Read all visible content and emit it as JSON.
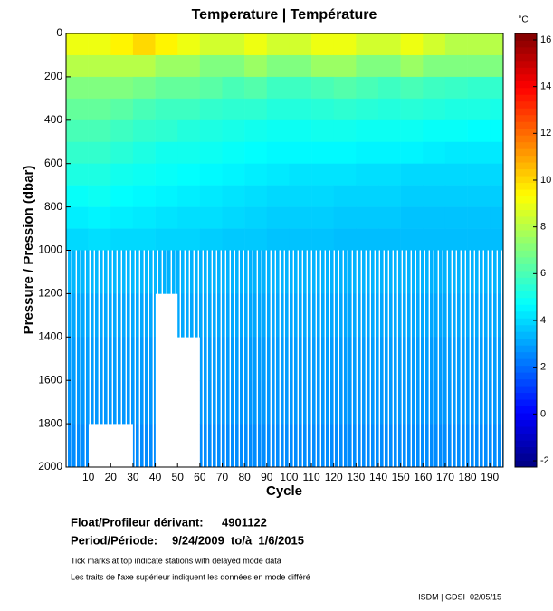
{
  "chart_data": {
    "type": "heatmap",
    "title": "Temperature | Température",
    "xlabel": "Cycle",
    "ylabel": "Pressure / Pression (dbar)",
    "xlim": [
      0,
      196
    ],
    "xticks": [
      10,
      20,
      30,
      40,
      50,
      60,
      70,
      80,
      90,
      100,
      110,
      120,
      130,
      140,
      150,
      160,
      170,
      180,
      190
    ],
    "ylim": [
      2000,
      0
    ],
    "yticks": [
      0,
      200,
      400,
      600,
      800,
      1000,
      1200,
      1400,
      1600,
      1800,
      2000
    ],
    "x_edges": [
      0,
      10,
      20,
      30,
      40,
      50,
      60,
      70,
      80,
      90,
      100,
      110,
      120,
      130,
      140,
      150,
      160,
      170,
      180,
      190,
      196
    ],
    "y_edges": [
      0,
      100,
      200,
      300,
      400,
      500,
      600,
      700,
      800,
      900,
      1000,
      1200,
      1400,
      1600,
      1800,
      2000
    ],
    "z": [
      [
        9,
        9,
        9.5,
        10,
        9.5,
        9,
        8.5,
        8.5,
        9,
        8.5,
        8.5,
        9,
        9,
        8.5,
        8.5,
        9,
        8.5,
        8,
        8,
        8
      ],
      [
        8,
        8,
        8,
        8,
        7.5,
        7.5,
        7,
        7,
        7.5,
        7,
        7,
        7.5,
        7.5,
        7,
        7,
        7.5,
        7,
        7,
        7,
        7
      ],
      [
        7,
        7,
        7,
        6.8,
        6.5,
        6.5,
        6.3,
        6,
        6.2,
        5.8,
        5.8,
        6,
        6.2,
        6,
        5.8,
        6,
        5.8,
        5.7,
        5.6,
        5.6
      ],
      [
        6.5,
        6.5,
        6.3,
        6,
        5.8,
        5.8,
        5.6,
        5.5,
        5.5,
        5.3,
        5.3,
        5.4,
        5.5,
        5.4,
        5.3,
        5.4,
        5.3,
        5.2,
        5.2,
        5.1
      ],
      [
        6,
        6,
        5.8,
        5.6,
        5.5,
        5.3,
        5.2,
        5.1,
        5,
        4.9,
        4.9,
        5,
        5,
        4.9,
        4.9,
        4.9,
        4.8,
        4.8,
        4.7,
        4.7
      ],
      [
        5.6,
        5.6,
        5.4,
        5.2,
        5,
        5,
        4.9,
        4.8,
        4.7,
        4.6,
        4.6,
        4.6,
        4.6,
        4.5,
        4.5,
        4.5,
        4.4,
        4.3,
        4.3,
        4.3
      ],
      [
        5.2,
        5.2,
        5,
        4.9,
        4.8,
        4.7,
        4.6,
        4.5,
        4.4,
        4.3,
        4.2,
        4.2,
        4.2,
        4.1,
        4.1,
        4,
        4,
        4,
        4,
        4
      ],
      [
        4.8,
        4.9,
        4.7,
        4.6,
        4.5,
        4.4,
        4.3,
        4.2,
        4.1,
        4,
        4,
        4,
        3.9,
        3.9,
        3.9,
        3.8,
        3.8,
        3.8,
        3.8,
        3.8
      ],
      [
        4.4,
        4.5,
        4.4,
        4.3,
        4.2,
        4.1,
        4.1,
        4,
        3.9,
        3.8,
        3.8,
        3.8,
        3.7,
        3.7,
        3.7,
        3.6,
        3.6,
        3.6,
        3.6,
        3.6
      ],
      [
        4,
        4.1,
        4,
        4,
        3.9,
        3.9,
        3.8,
        3.7,
        3.7,
        3.6,
        3.6,
        3.6,
        3.5,
        3.5,
        3.5,
        3.5,
        3.5,
        3.5,
        3.5,
        3.5
      ],
      [
        3.4,
        3.4,
        3.4,
        3.4,
        3.3,
        3.3,
        3.3,
        3.3,
        3.3,
        3.3,
        3.3,
        3.3,
        3.3,
        3.3,
        3.3,
        3.3,
        3.3,
        3.3,
        3.3,
        3.3
      ],
      [
        3.1,
        3.1,
        3.1,
        3.1,
        null,
        3.1,
        3.1,
        3.1,
        3.1,
        3.1,
        3.1,
        3.1,
        3.1,
        3.1,
        3.1,
        3.1,
        3.1,
        3.1,
        3.1,
        3.1
      ],
      [
        2.9,
        2.9,
        2.9,
        2.9,
        null,
        null,
        2.9,
        2.9,
        2.9,
        2.9,
        2.9,
        2.9,
        2.9,
        2.9,
        2.9,
        2.9,
        2.9,
        2.9,
        2.9,
        2.9
      ],
      [
        2.8,
        2.8,
        2.8,
        2.8,
        null,
        null,
        2.8,
        2.8,
        2.8,
        2.8,
        2.8,
        2.8,
        2.8,
        2.8,
        2.8,
        2.8,
        2.8,
        2.8,
        2.8,
        2.8
      ],
      [
        2.6,
        null,
        null,
        2.6,
        null,
        null,
        2.6,
        2.6,
        2.6,
        2.6,
        2.6,
        2.6,
        2.6,
        2.6,
        2.6,
        2.6,
        2.6,
        2.6,
        2.6,
        2.6
      ]
    ],
    "colormap": "jet",
    "clim": [
      -2.27,
      16.27
    ],
    "cticks": [
      -2,
      0,
      2,
      4,
      6,
      8,
      10,
      12,
      14,
      16
    ],
    "cunit": "°C"
  },
  "footer": {
    "float_label": "Float/Profileur dérivant:",
    "float_id": "4901122",
    "period_label": "Period/Période:",
    "period": "9/24/2009  to/à  1/6/2015",
    "note_en": "Tick marks at top indicate stations with delayed mode data",
    "note_fr": "Les traits de l'axe supérieur indiquent les données en mode différé",
    "credit": "ISDM | GDSI  02/05/15"
  }
}
